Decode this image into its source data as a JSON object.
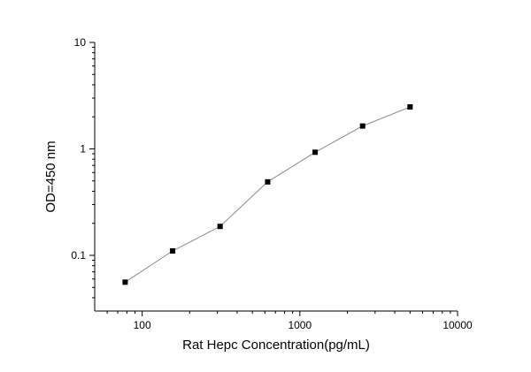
{
  "chart_data": {
    "type": "scatter",
    "title": "",
    "xlabel": "Rat Hepc  Concentration(pg/mL)",
    "ylabel": "OD=450 nm",
    "x_scale": "log",
    "y_scale": "log",
    "xlim": [
      50,
      10000
    ],
    "ylim": [
      0.03,
      10
    ],
    "grid": false,
    "legend": "none",
    "x_ticks": [
      {
        "value": 100,
        "label": "100"
      },
      {
        "value": 1000,
        "label": "1000"
      },
      {
        "value": 10000,
        "label": "10000"
      }
    ],
    "y_ticks": [
      {
        "value": 0.1,
        "label": "0.1"
      },
      {
        "value": 1,
        "label": "1"
      },
      {
        "value": 10,
        "label": "10"
      }
    ],
    "series": [
      {
        "x": [
          78,
          156,
          312,
          625,
          1250,
          2500,
          5000
        ],
        "y": [
          0.056,
          0.11,
          0.187,
          0.49,
          0.93,
          1.64,
          2.48
        ],
        "marker": "square",
        "connect": true
      }
    ],
    "colors": {
      "line": "#8a8a8a",
      "marker": "#000000",
      "axis": "#000000"
    }
  }
}
